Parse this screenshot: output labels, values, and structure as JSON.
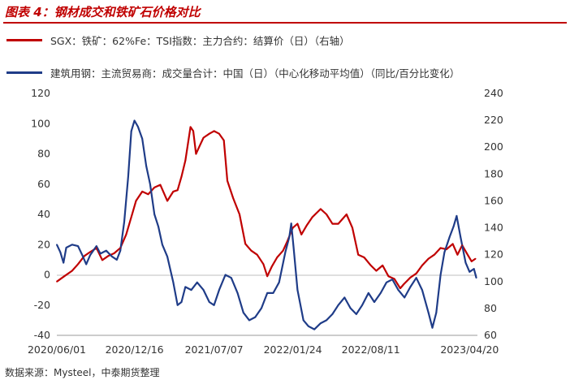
{
  "title": "图表 4：钢材成交和铁矿石价格对比",
  "source": "数据来源：Mysteel，中泰期货整理",
  "colors": {
    "sgx": "#c00000",
    "steel": "#1f3c88",
    "accent": "#c00000"
  },
  "chart_data": {
    "type": "line",
    "title": "",
    "x_tick_labels": [
      "2020/06/01",
      "2020/12/16",
      "2021/07/07",
      "2022/01/24",
      "2022/08/11",
      "2023/04/20"
    ],
    "x_range": [
      "2020/06/01",
      "2023/05/10"
    ],
    "y_left": {
      "ticks": [
        "-40",
        "-20",
        "0",
        "20",
        "40",
        "60",
        "80",
        "100",
        "120"
      ],
      "range": [
        -40,
        120
      ]
    },
    "y_right": {
      "ticks": [
        "60",
        "80",
        "100",
        "120",
        "140",
        "160",
        "180",
        "200",
        "220",
        "240"
      ],
      "range": [
        60,
        240
      ]
    },
    "grid": false,
    "legend_position": "top-left",
    "series": [
      {
        "name": "SGX：铁矿：62%Fe：TSI指数：主力合约：结算价（日）（右轴）",
        "axis": "right",
        "color": "#c00000",
        "points": [
          [
            "2020/06/01",
            100
          ],
          [
            "2020/06/20",
            104
          ],
          [
            "2020/07/10",
            108
          ],
          [
            "2020/07/25",
            113
          ],
          [
            "2020/08/10",
            119
          ],
          [
            "2020/08/25",
            122
          ],
          [
            "2020/09/10",
            125
          ],
          [
            "2020/09/25",
            116
          ],
          [
            "2020/10/10",
            119
          ],
          [
            "2020/10/25",
            121
          ],
          [
            "2020/11/10",
            125
          ],
          [
            "2020/11/25",
            135
          ],
          [
            "2020/12/10",
            150
          ],
          [
            "2020/12/20",
            160
          ],
          [
            "2021/01/05",
            167
          ],
          [
            "2021/01/20",
            165
          ],
          [
            "2021/02/05",
            170
          ],
          [
            "2021/02/20",
            172
          ],
          [
            "2021/03/10",
            160
          ],
          [
            "2021/03/25",
            167
          ],
          [
            "2021/04/05",
            168
          ],
          [
            "2021/04/15",
            178
          ],
          [
            "2021/04/25",
            190
          ],
          [
            "2021/05/08",
            215
          ],
          [
            "2021/05/15",
            212
          ],
          [
            "2021/05/22",
            195
          ],
          [
            "2021/05/30",
            200
          ],
          [
            "2021/06/10",
            207
          ],
          [
            "2021/06/25",
            210
          ],
          [
            "2021/07/07",
            212
          ],
          [
            "2021/07/20",
            210
          ],
          [
            "2021/08/01",
            205
          ],
          [
            "2021/08/10",
            175
          ],
          [
            "2021/08/25",
            162
          ],
          [
            "2021/09/10",
            150
          ],
          [
            "2021/09/25",
            128
          ],
          [
            "2021/10/10",
            123
          ],
          [
            "2021/10/25",
            120
          ],
          [
            "2021/11/10",
            113
          ],
          [
            "2021/11/20",
            104
          ],
          [
            "2021/12/01",
            111
          ],
          [
            "2021/12/15",
            118
          ],
          [
            "2021/12/30",
            123
          ],
          [
            "2022/01/10",
            130
          ],
          [
            "2022/01/24",
            140
          ],
          [
            "2022/02/05",
            143
          ],
          [
            "2022/02/15",
            135
          ],
          [
            "2022/03/01",
            142
          ],
          [
            "2022/03/15",
            148
          ],
          [
            "2022/04/05",
            154
          ],
          [
            "2022/04/20",
            150
          ],
          [
            "2022/05/05",
            143
          ],
          [
            "2022/05/20",
            143
          ],
          [
            "2022/06/10",
            150
          ],
          [
            "2022/06/25",
            140
          ],
          [
            "2022/07/10",
            120
          ],
          [
            "2022/07/25",
            118
          ],
          [
            "2022/08/11",
            112
          ],
          [
            "2022/08/25",
            108
          ],
          [
            "2022/09/10",
            112
          ],
          [
            "2022/09/25",
            104
          ],
          [
            "2022/10/10",
            102
          ],
          [
            "2022/10/25",
            95
          ],
          [
            "2022/11/03",
            98
          ],
          [
            "2022/11/20",
            103
          ],
          [
            "2022/12/05",
            106
          ],
          [
            "2022/12/20",
            112
          ],
          [
            "2023/01/05",
            117
          ],
          [
            "2023/01/20",
            120
          ],
          [
            "2023/02/05",
            125
          ],
          [
            "2023/02/20",
            124
          ],
          [
            "2023/03/08",
            128
          ],
          [
            "2023/03/20",
            120
          ],
          [
            "2023/04/01",
            127
          ],
          [
            "2023/04/15",
            120
          ],
          [
            "2023/04/25",
            115
          ],
          [
            "2023/05/05",
            117
          ]
        ]
      },
      {
        "name": "建筑用钢：主流贸易商：成交量合计：中国（日）（中心化移动平均值）（同比/百分比变化）",
        "axis": "left",
        "color": "#1f3c88",
        "points": [
          [
            "2020/06/01",
            20
          ],
          [
            "2020/06/10",
            15
          ],
          [
            "2020/06/18",
            8
          ],
          [
            "2020/06/25",
            18
          ],
          [
            "2020/07/10",
            20
          ],
          [
            "2020/07/25",
            19
          ],
          [
            "2020/08/05",
            13
          ],
          [
            "2020/08/15",
            7
          ],
          [
            "2020/08/25",
            13
          ],
          [
            "2020/09/10",
            19
          ],
          [
            "2020/09/20",
            14
          ],
          [
            "2020/10/05",
            16
          ],
          [
            "2020/10/20",
            12
          ],
          [
            "2020/11/01",
            10
          ],
          [
            "2020/11/10",
            16
          ],
          [
            "2020/11/20",
            35
          ],
          [
            "2020/11/30",
            65
          ],
          [
            "2020/12/08",
            95
          ],
          [
            "2020/12/16",
            102
          ],
          [
            "2020/12/25",
            98
          ],
          [
            "2021/01/05",
            90
          ],
          [
            "2021/01/15",
            72
          ],
          [
            "2021/01/25",
            60
          ],
          [
            "2021/02/05",
            40
          ],
          [
            "2021/02/15",
            32
          ],
          [
            "2021/02/25",
            20
          ],
          [
            "2021/03/10",
            12
          ],
          [
            "2021/03/25",
            -5
          ],
          [
            "2021/04/05",
            -20
          ],
          [
            "2021/04/15",
            -18
          ],
          [
            "2021/04/25",
            -8
          ],
          [
            "2021/05/10",
            -10
          ],
          [
            "2021/05/25",
            -5
          ],
          [
            "2021/06/10",
            -10
          ],
          [
            "2021/06/25",
            -18
          ],
          [
            "2021/07/07",
            -20
          ],
          [
            "2021/07/20",
            -10
          ],
          [
            "2021/08/05",
            0
          ],
          [
            "2021/08/20",
            -2
          ],
          [
            "2021/09/05",
            -12
          ],
          [
            "2021/09/20",
            -25
          ],
          [
            "2021/10/05",
            -30
          ],
          [
            "2021/10/20",
            -28
          ],
          [
            "2021/11/05",
            -22
          ],
          [
            "2021/11/20",
            -12
          ],
          [
            "2021/12/05",
            -12
          ],
          [
            "2021/12/20",
            -5
          ],
          [
            "2022/01/05",
            15
          ],
          [
            "2022/01/15",
            25
          ],
          [
            "2022/01/20",
            34
          ],
          [
            "2022/01/26",
            18
          ],
          [
            "2022/02/05",
            -10
          ],
          [
            "2022/02/20",
            -30
          ],
          [
            "2022/03/05",
            -34
          ],
          [
            "2022/03/20",
            -36
          ],
          [
            "2022/04/05",
            -32
          ],
          [
            "2022/04/20",
            -30
          ],
          [
            "2022/05/05",
            -26
          ],
          [
            "2022/05/20",
            -20
          ],
          [
            "2022/06/05",
            -15
          ],
          [
            "2022/06/20",
            -22
          ],
          [
            "2022/07/05",
            -26
          ],
          [
            "2022/07/20",
            -20
          ],
          [
            "2022/08/05",
            -12
          ],
          [
            "2022/08/20",
            -18
          ],
          [
            "2022/09/05",
            -12
          ],
          [
            "2022/09/20",
            -5
          ],
          [
            "2022/10/05",
            -3
          ],
          [
            "2022/10/20",
            -10
          ],
          [
            "2022/11/05",
            -15
          ],
          [
            "2022/11/20",
            -8
          ],
          [
            "2022/12/05",
            -2
          ],
          [
            "2022/12/20",
            -10
          ],
          [
            "2023/01/05",
            -25
          ],
          [
            "2023/01/15",
            -35
          ],
          [
            "2023/01/25",
            -25
          ],
          [
            "2023/02/05",
            0
          ],
          [
            "2023/02/15",
            15
          ],
          [
            "2023/02/28",
            25
          ],
          [
            "2023/03/10",
            32
          ],
          [
            "2023/03/18",
            39
          ],
          [
            "2023/03/28",
            25
          ],
          [
            "2023/04/10",
            8
          ],
          [
            "2023/04/20",
            2
          ],
          [
            "2023/05/01",
            4
          ],
          [
            "2023/05/07",
            -2
          ]
        ]
      }
    ]
  }
}
